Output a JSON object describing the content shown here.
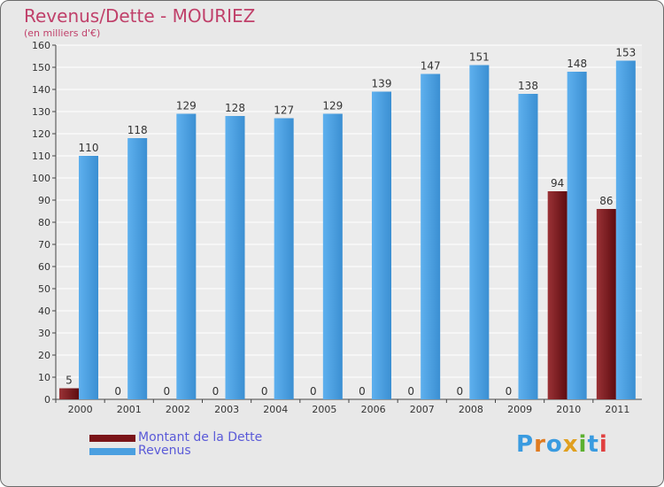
{
  "header": {
    "title": "Revenus/Dette - MOURIEZ",
    "subtitle": "(en milliers d'€)"
  },
  "legend": [
    {
      "label": "Montant de la Dette",
      "color": "#7a1418"
    },
    {
      "label": "Revenus",
      "color": "#4a9fe0"
    }
  ],
  "logo": {
    "text": "Proxiti",
    "letter_colors": [
      "#3a9be0",
      "#e07b20",
      "#3a9be0",
      "#e0a020",
      "#5cb030",
      "#3a9be0",
      "#e04040"
    ]
  },
  "chart_data": {
    "type": "bar",
    "categories": [
      "2000",
      "2001",
      "2002",
      "2003",
      "2004",
      "2005",
      "2006",
      "2007",
      "2008",
      "2009",
      "2010",
      "2011"
    ],
    "series": [
      {
        "name": "Montant de la Dette",
        "values": [
          5,
          0,
          0,
          0,
          0,
          0,
          0,
          0,
          0,
          0,
          94,
          86
        ],
        "color": "#7a1418"
      },
      {
        "name": "Revenus",
        "values": [
          110,
          118,
          129,
          128,
          127,
          129,
          139,
          147,
          151,
          138,
          148,
          153
        ],
        "color": "#4a9fe0"
      }
    ],
    "ylim": [
      0,
      160
    ],
    "yticks": [
      0,
      10,
      20,
      30,
      40,
      50,
      60,
      70,
      80,
      90,
      100,
      110,
      120,
      130,
      140,
      150,
      160
    ],
    "grid": true,
    "legend_position": "bottom-left"
  }
}
